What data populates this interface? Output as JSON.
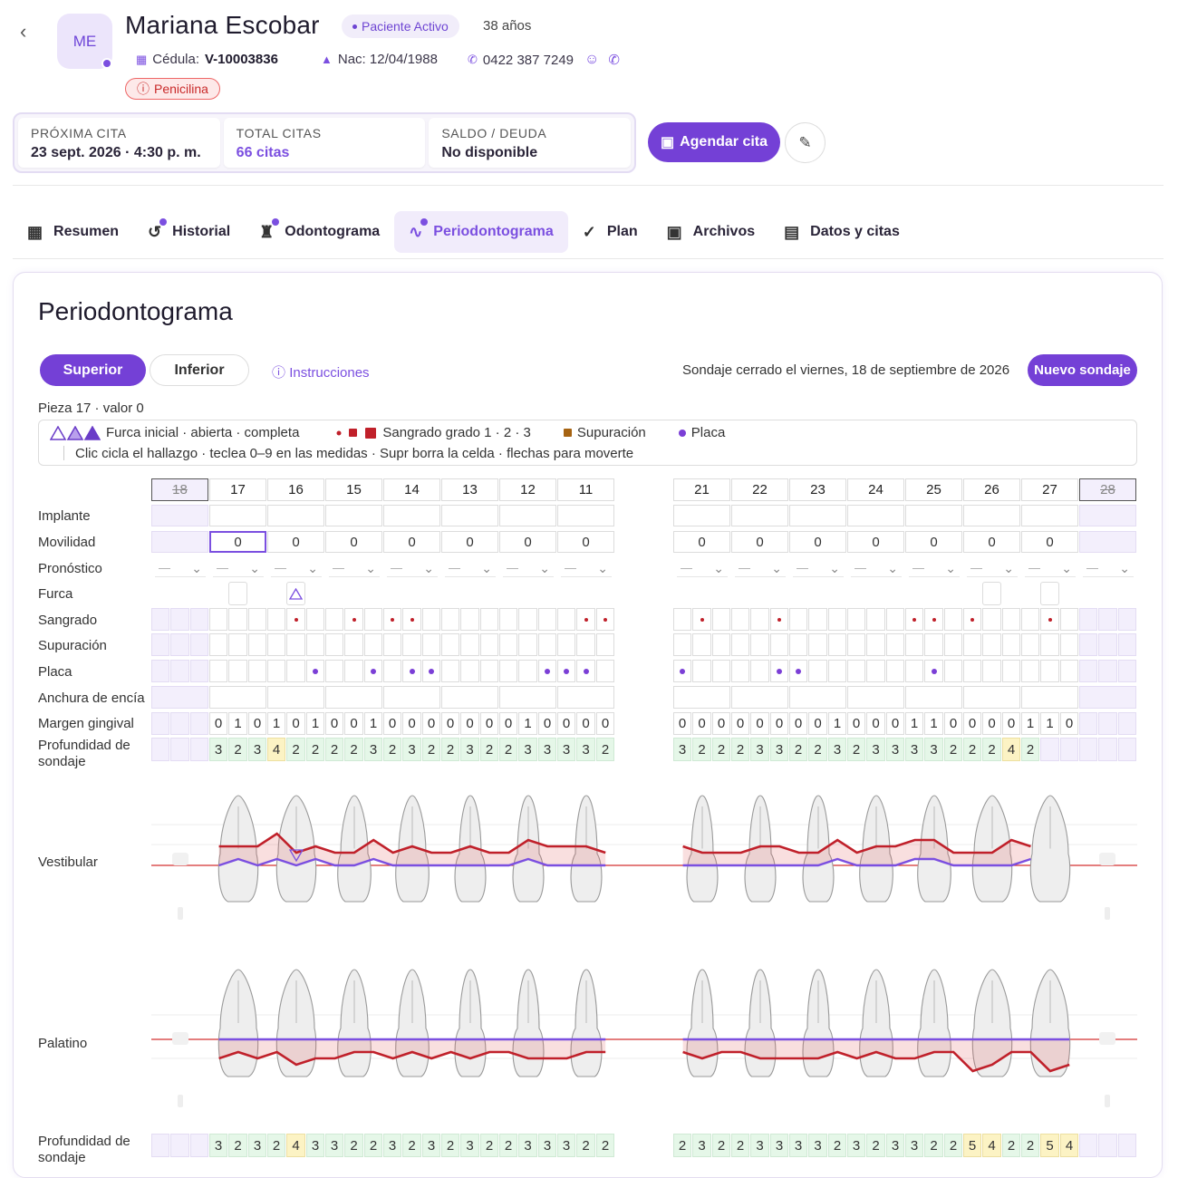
{
  "patient": {
    "initials": "ME",
    "name": "Mariana Escobar",
    "status": "Paciente Activo",
    "age": "38 años",
    "cedula_label": "Cédula:",
    "cedula": "V-10003836",
    "nac": "Nac: 12/04/1988",
    "phone": "0422 387 7249",
    "allergy": "Penicilina"
  },
  "stats": [
    {
      "label": "PRÓXIMA CITA",
      "value": "23 sept. 2026 · 4:30 p. m."
    },
    {
      "label": "TOTAL CITAS",
      "value": "66 citas"
    },
    {
      "label": "SALDO / DEUDA",
      "value": "No disponible"
    }
  ],
  "actions": {
    "agendar": "Agendar cita"
  },
  "tabs": [
    "Resumen",
    "Historial",
    "Odontograma",
    "Periodontograma",
    "Plan",
    "Archivos",
    "Datos y citas"
  ],
  "tab_icons": [
    "grid-icon",
    "history-icon",
    "tooth-icon",
    "pulse-icon",
    "check-circle-icon",
    "image-icon",
    "calendar-person-icon"
  ],
  "active_tab": "Periodontograma",
  "perio": {
    "title": "Periodontograma",
    "seg_upper": "Superior",
    "seg_lower": "Inferior",
    "instructions": "Instrucciones",
    "closed": "Sondaje cerrado el viernes, 18 de septiembre de 2026",
    "new_button": "Nuevo sondaje",
    "selection": "Pieza 17 · valor 0",
    "legend_furca": "Furca inicial · abierta · completa",
    "legend_bleed": "Sangrado grado 1 · 2 · 3",
    "legend_supp": "Supuración",
    "legend_plaque": "Placa",
    "legend_help": "Clic cicla el hallazgo · teclea 0–9 en las medidas · Supr borra la celda · flechas para moverte",
    "row_labels": {
      "implante": "Implante",
      "movilidad": "Movilidad",
      "pronostico": "Pronóstico",
      "furca": "Furca",
      "sangrado": "Sangrado",
      "supuracion": "Supuración",
      "placa": "Placa",
      "anchura": "Anchura de encía",
      "margen": "Margen gingival",
      "profundidad": "Profundidad de sondaje",
      "vestibular": "Vestibular",
      "palatino": "Palatino",
      "profundidad2": "Profundidad de sondaje"
    },
    "pron_placeholder": "—",
    "teeth_left": [
      "18",
      "17",
      "16",
      "15",
      "14",
      "13",
      "12",
      "11"
    ],
    "teeth_right": [
      "21",
      "22",
      "23",
      "24",
      "25",
      "26",
      "27",
      "28"
    ],
    "missing": [
      "18",
      "28"
    ],
    "mobility_left": [
      "",
      "0",
      "0",
      "0",
      "0",
      "0",
      "0",
      "0"
    ],
    "mobility_right": [
      "0",
      "0",
      "0",
      "0",
      "0",
      "0",
      "0",
      ""
    ],
    "bleeding_left": [
      0,
      0,
      0,
      0,
      0,
      0,
      0,
      1,
      0,
      0,
      1,
      0,
      1,
      1,
      0,
      0,
      0,
      0,
      0,
      0,
      0,
      0,
      1,
      1
    ],
    "bleeding_right": [
      0,
      1,
      0,
      0,
      0,
      1,
      0,
      0,
      0,
      0,
      0,
      0,
      1,
      1,
      0,
      1,
      0,
      0,
      0,
      1,
      0,
      0,
      0,
      0
    ],
    "plaque_left": [
      0,
      0,
      0,
      0,
      0,
      0,
      0,
      0,
      1,
      0,
      0,
      1,
      0,
      1,
      1,
      0,
      0,
      0,
      0,
      0,
      1,
      1,
      1,
      0
    ],
    "plaque_right": [
      1,
      0,
      0,
      0,
      0,
      1,
      1,
      0,
      0,
      0,
      0,
      0,
      0,
      1,
      0,
      0,
      0,
      0,
      0,
      0,
      0,
      0,
      0,
      0
    ],
    "margin_left": [
      "",
      "",
      "",
      "0",
      "1",
      "0",
      "1",
      "0",
      "1",
      "0",
      "0",
      "1",
      "0",
      "0",
      "0",
      "0",
      "0",
      "0",
      "0",
      "1",
      "0",
      "0",
      "0",
      "0"
    ],
    "margin_right": [
      "0",
      "0",
      "0",
      "0",
      "0",
      "0",
      "0",
      "0",
      "1",
      "0",
      "0",
      "0",
      "1",
      "1",
      "0",
      "0",
      "0",
      "0",
      "1",
      "1",
      "0",
      "",
      "",
      ""
    ],
    "pd_left": [
      "",
      "",
      "",
      "3",
      "2",
      "3",
      "4",
      "2",
      "2",
      "2",
      "2",
      "3",
      "2",
      "3",
      "2",
      "2",
      "3",
      "2",
      "2",
      "3",
      "3",
      "3",
      "3",
      "2"
    ],
    "pd_right": [
      "3",
      "2",
      "2",
      "2",
      "3",
      "3",
      "2",
      "2",
      "3",
      "2",
      "3",
      "3",
      "3",
      "3",
      "2",
      "2",
      "2",
      "4",
      "2",
      "",
      "",
      "",
      "",
      ""
    ],
    "pd_pal_left": [
      "",
      "",
      "",
      "3",
      "2",
      "3",
      "2",
      "4",
      "3",
      "3",
      "2",
      "2",
      "3",
      "2",
      "3",
      "2",
      "3",
      "2",
      "2",
      "3",
      "3",
      "3",
      "2",
      "2"
    ],
    "pd_pal_right": [
      "2",
      "3",
      "2",
      "2",
      "3",
      "3",
      "3",
      "3",
      "2",
      "3",
      "2",
      "3",
      "3",
      "2",
      "2",
      "5",
      "4",
      "2",
      "2",
      "5",
      "4",
      "",
      "",
      ""
    ],
    "furca_markers": {
      "17": "box",
      "16": "triangle",
      "26": "box",
      "27": "box"
    }
  }
}
